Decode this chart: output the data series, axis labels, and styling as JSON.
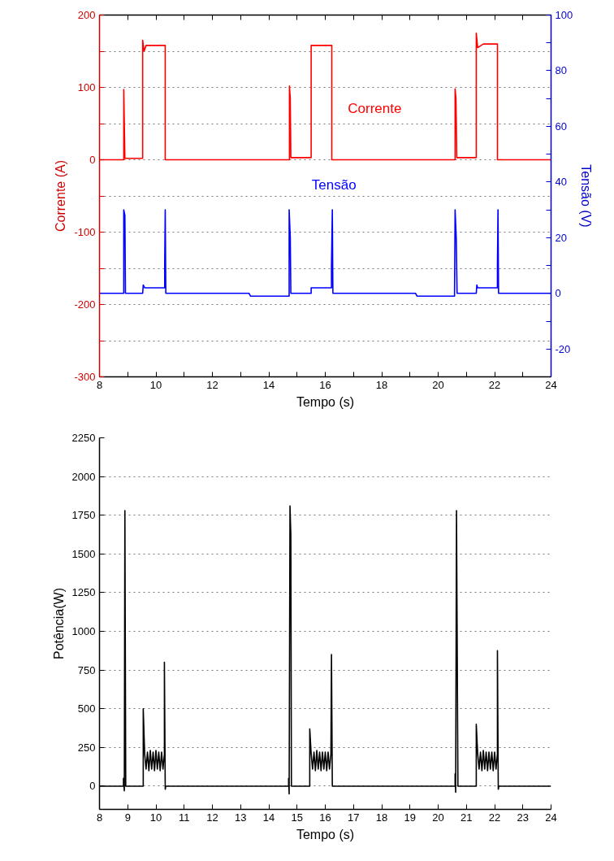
{
  "chart_data": [
    {
      "type": "line",
      "xlabel": "Tempo (s)",
      "ylabel": "Corrente (A)",
      "y2label": "Tensão (V)",
      "xlim": [
        8,
        24
      ],
      "xticks": [
        8,
        {
          "value": 9,
          "label": null
        },
        10,
        {
          "value": 11,
          "label": null
        },
        12,
        {
          "value": 13,
          "label": null
        },
        14,
        {
          "value": 15,
          "label": null
        },
        16,
        {
          "value": 17,
          "label": null
        },
        18,
        {
          "value": 19,
          "label": null
        },
        20,
        {
          "value": 21,
          "label": null
        },
        22,
        {
          "value": 23,
          "label": null
        },
        24
      ],
      "ylim": [
        -300,
        200
      ],
      "yticks": [
        -300,
        {
          "value": -250,
          "label": null
        },
        -200,
        {
          "value": -150,
          "label": null
        },
        -100,
        {
          "value": -50,
          "label": null
        },
        0,
        {
          "value": 50,
          "label": null
        },
        100,
        {
          "value": 150,
          "label": null
        },
        200
      ],
      "y2lim": [
        -30,
        100
      ],
      "y2ticks": [
        -20,
        {
          "value": -10,
          "label": null
        },
        0,
        {
          "value": 10,
          "label": null
        },
        20,
        {
          "value": 30,
          "label": null
        },
        40,
        {
          "value": 50,
          "label": null
        },
        60,
        {
          "value": 70,
          "label": null
        },
        80,
        {
          "value": 90,
          "label": null
        },
        100
      ],
      "grid": "y",
      "line_style": "solid",
      "series": [
        {
          "name": "Corrente",
          "color": "#ff0000",
          "x": [
            8,
            8.86,
            8.86,
            8.9,
            9.53,
            9.53,
            9.58,
            9.65,
            10.33,
            10.33,
            14.73,
            14.73,
            14.76,
            14.78,
            15.5,
            15.5,
            16.23,
            16.23,
            20.6,
            20.6,
            20.63,
            20.66,
            21.35,
            21.35,
            21.4,
            21.6,
            22.1,
            22.1,
            24
          ],
          "values": [
            0,
            0,
            97,
            2,
            2,
            165,
            150,
            158,
            158,
            0,
            0,
            102,
            85,
            3,
            3,
            158,
            158,
            0,
            0,
            98,
            85,
            3,
            3,
            175,
            155,
            160,
            160,
            0,
            0
          ]
        },
        {
          "name": "Tensão",
          "color": "#0000ff",
          "axis": "y2",
          "x": [
            8,
            8.86,
            8.86,
            8.9,
            8.92,
            9.53,
            9.55,
            9.6,
            10.31,
            10.31,
            10.33,
            10.35,
            13.3,
            13.35,
            14.72,
            14.72,
            14.76,
            14.78,
            15.5,
            15.5,
            16.22,
            16.22,
            16.25,
            16.27,
            19.2,
            19.25,
            20.58,
            20.6,
            20.64,
            20.67,
            21.35,
            21.37,
            21.4,
            22.1,
            22.1,
            22.12,
            22.14,
            24
          ],
          "values": [
            0,
            0,
            30,
            28,
            0,
            0,
            3,
            2,
            2,
            10,
            30,
            0,
            0,
            -1,
            -1,
            30,
            20,
            0,
            0,
            2,
            2,
            10,
            30,
            0,
            0,
            -1,
            -1,
            30,
            20,
            0,
            0,
            3,
            2,
            2,
            10,
            30,
            0,
            0
          ]
        }
      ]
    },
    {
      "type": "line",
      "xlabel": "Tempo (s)",
      "ylabel": "Potência(W)",
      "xlim": [
        8,
        24
      ],
      "xticks": [
        8,
        9,
        10,
        11,
        12,
        13,
        14,
        15,
        16,
        17,
        18,
        19,
        20,
        21,
        22,
        23,
        24
      ],
      "ylim": [
        -150,
        2250
      ],
      "yticks": [
        0,
        250,
        500,
        750,
        1000,
        1250,
        1500,
        1750,
        2000,
        2250
      ],
      "grid": "y",
      "line_style": "solid",
      "series": [
        {
          "color": "#000000",
          "x": [
            8,
            8.85,
            8.85,
            8.88,
            8.9,
            8.93,
            9.55,
            9.55,
            9.6,
            9.65,
            9.7,
            9.75,
            9.8,
            9.85,
            9.9,
            9.95,
            10.0,
            10.05,
            10.1,
            10.15,
            10.2,
            10.25,
            10.3,
            10.3,
            10.33,
            10.35,
            14.7,
            14.7,
            14.72,
            14.75,
            14.78,
            14.8,
            15.45,
            15.45,
            15.5,
            15.55,
            15.6,
            15.65,
            15.7,
            15.75,
            15.8,
            15.85,
            15.9,
            15.95,
            16.0,
            16.05,
            16.1,
            16.15,
            16.2,
            16.22,
            16.25,
            20.6,
            20.6,
            20.62,
            20.65,
            20.7,
            21.35,
            21.35,
            21.4,
            21.45,
            21.5,
            21.55,
            21.6,
            21.65,
            21.7,
            21.75,
            21.8,
            21.85,
            21.9,
            21.95,
            22.0,
            22.05,
            22.1,
            22.1,
            22.13,
            22.15,
            24
          ],
          "values": [
            0,
            0,
            50,
            -30,
            1780,
            0,
            0,
            500,
            210,
            110,
            220,
            100,
            230,
            110,
            220,
            100,
            230,
            110,
            220,
            100,
            220,
            110,
            210,
            800,
            -20,
            0,
            0,
            50,
            -50,
            1810,
            1620,
            0,
            0,
            370,
            210,
            110,
            220,
            100,
            230,
            110,
            220,
            100,
            220,
            110,
            220,
            100,
            220,
            110,
            210,
            850,
            0,
            0,
            80,
            -40,
            1780,
            0,
            0,
            400,
            210,
            110,
            220,
            100,
            230,
            110,
            220,
            100,
            220,
            110,
            220,
            100,
            220,
            110,
            210,
            875,
            -20,
            0,
            0
          ]
        }
      ]
    }
  ]
}
